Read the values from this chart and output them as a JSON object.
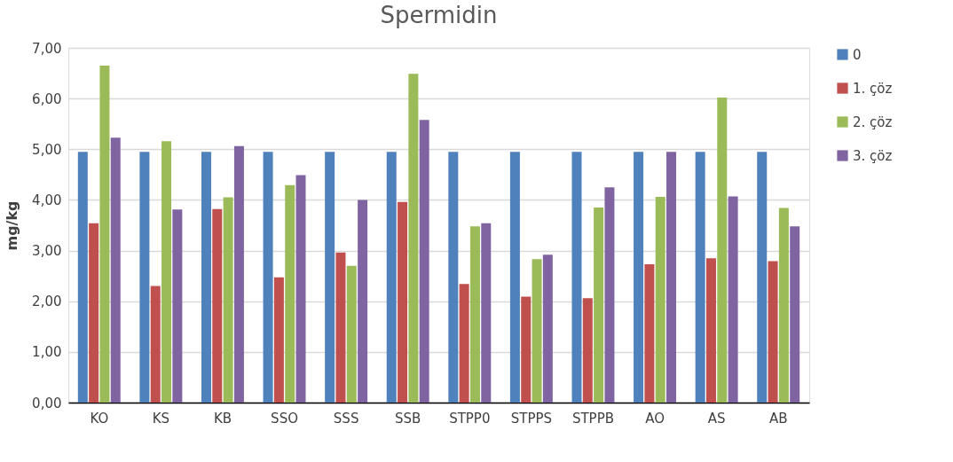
{
  "chart_data": {
    "type": "bar",
    "title": "Spermidin",
    "ylabel": "mg/kg",
    "categories": [
      "KO",
      "KS",
      "KB",
      "SSO",
      "SSS",
      "SSB",
      "STPP0",
      "STPPS",
      "STPPB",
      "AO",
      "AS",
      "AB"
    ],
    "series": [
      {
        "name": "0",
        "color": "#4f81bd",
        "values": [
          4.95,
          4.95,
          4.95,
          4.95,
          4.95,
          4.95,
          4.95,
          4.95,
          4.95,
          4.95,
          4.95,
          4.95
        ]
      },
      {
        "name": "1. çöz",
        "color": "#c0504d",
        "values": [
          3.54,
          2.3,
          3.82,
          2.47,
          2.96,
          3.96,
          2.34,
          2.09,
          2.06,
          2.73,
          2.85,
          2.79
        ]
      },
      {
        "name": "2. çöz",
        "color": "#9bbb59",
        "values": [
          6.65,
          5.16,
          4.05,
          4.29,
          2.7,
          6.49,
          3.48,
          2.83,
          3.85,
          4.06,
          6.02,
          3.84
        ]
      },
      {
        "name": "3. çöz",
        "color": "#8064a2",
        "values": [
          5.23,
          3.81,
          5.06,
          4.49,
          4.0,
          5.58,
          3.54,
          2.92,
          4.25,
          4.95,
          4.07,
          3.48
        ]
      }
    ],
    "ylim": [
      0,
      7
    ],
    "yticks": [
      {
        "value": 0,
        "label": "0,00"
      },
      {
        "value": 1,
        "label": "1,00"
      },
      {
        "value": 2,
        "label": "2,00"
      },
      {
        "value": 3,
        "label": "3,00"
      },
      {
        "value": 4,
        "label": "4,00"
      },
      {
        "value": 5,
        "label": "5,00"
      },
      {
        "value": 6,
        "label": "6,00"
      },
      {
        "value": 7,
        "label": "7,00"
      }
    ],
    "grid": "y",
    "legend": "right"
  }
}
